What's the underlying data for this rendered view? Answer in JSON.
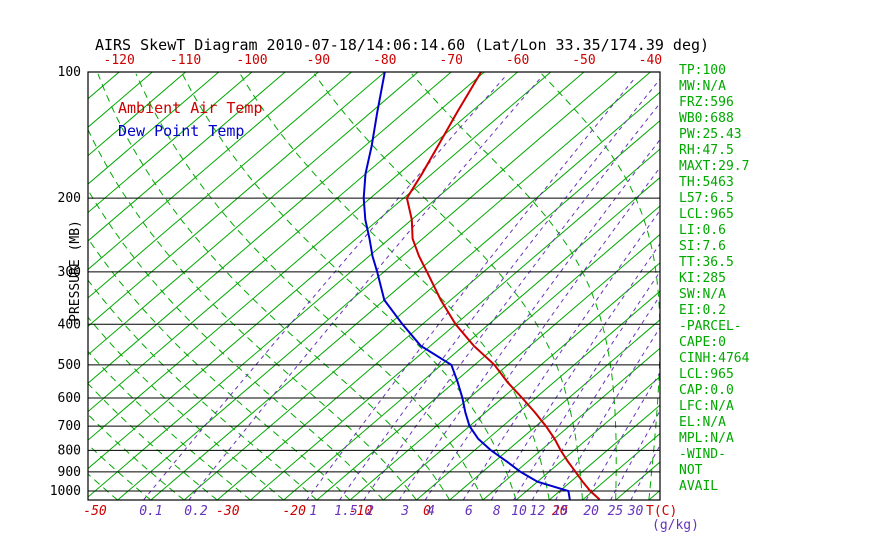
{
  "colors": {
    "isotherm": "#00A800",
    "mixing": "#6633BB",
    "tempLabel": "#CC0000",
    "statsText": "#00A800",
    "pressureLine": "#000000"
  },
  "stats": {
    "items": [
      "TP:100",
      "MW:N/A",
      "FRZ:596",
      "WB0:688",
      "PW:25.43",
      "RH:47.5",
      "MAXT:29.7",
      "TH:5463",
      "L57:6.5",
      "LCL:965",
      "LI:0.6",
      "SI:7.6",
      "TT:36.5",
      "KI:285",
      "SW:N/A",
      "EI:0.2",
      "-PARCEL-",
      "CAPE:0",
      "CINH:4764",
      "LCL:965",
      "CAP:0.0",
      "LFC:N/A",
      "EL:N/A",
      "MPL:N/A",
      "-WIND-",
      "NOT",
      "AVAIL"
    ]
  },
  "chart_data": {
    "type": "line",
    "title": "AIRS SkewT Diagram 2010-07-18/14:06:14.60 (Lat/Lon 33.35/174.39 deg)",
    "ylabel": "PRESSURE (MB)",
    "xlabel": "T(C)",
    "y_scale": "log",
    "ylim": [
      100,
      1051
    ],
    "y_ticks": [
      100,
      200,
      300,
      400,
      500,
      600,
      700,
      800,
      900,
      1000
    ],
    "top_temp_ticks": [
      -120,
      -110,
      -100,
      -90,
      -80,
      -70,
      -60,
      -50,
      -40
    ],
    "bottom_temp_ticks": [
      -50,
      -30,
      -20,
      -10,
      0,
      20
    ],
    "mixing_ratio_ticks": [
      0.1,
      0.2,
      1,
      1.5,
      2,
      3,
      4,
      6,
      8,
      10,
      12,
      15,
      20,
      25,
      30
    ],
    "mixing_ratio_unit": "(g/kg)",
    "isotherms": {
      "min": -130,
      "max": 45,
      "step": 5
    },
    "moist_adiabats": {
      "min": -50,
      "max": 40,
      "step": 5
    },
    "series": [
      {
        "name": "Ambient Air Temp",
        "color": "#CC0000",
        "points_pressure_temp": [
          [
            100,
            -65.5
          ],
          [
            125,
            -62
          ],
          [
            150,
            -59
          ],
          [
            175,
            -56.5
          ],
          [
            200,
            -54.5
          ],
          [
            225,
            -50
          ],
          [
            250,
            -46.5
          ],
          [
            275,
            -42.5
          ],
          [
            300,
            -38.5
          ],
          [
            350,
            -31.5
          ],
          [
            400,
            -25
          ],
          [
            450,
            -18.5
          ],
          [
            500,
            -12
          ],
          [
            550,
            -7
          ],
          [
            600,
            -2
          ],
          [
            650,
            2.5
          ],
          [
            700,
            6.5
          ],
          [
            750,
            10
          ],
          [
            800,
            13
          ],
          [
            850,
            16
          ],
          [
            900,
            19
          ],
          [
            950,
            21.8
          ],
          [
            1000,
            24.6
          ],
          [
            1048,
            27.5
          ]
        ]
      },
      {
        "name": "Dew Point Temp",
        "color": "#0000CC",
        "points_pressure_temp": [
          [
            100,
            -80
          ],
          [
            125,
            -74
          ],
          [
            150,
            -69
          ],
          [
            175,
            -65
          ],
          [
            200,
            -61
          ],
          [
            225,
            -57
          ],
          [
            250,
            -53
          ],
          [
            275,
            -49.5
          ],
          [
            300,
            -46
          ],
          [
            350,
            -40
          ],
          [
            400,
            -33
          ],
          [
            450,
            -26.5
          ],
          [
            500,
            -18.5
          ],
          [
            550,
            -14.5
          ],
          [
            600,
            -11
          ],
          [
            650,
            -8
          ],
          [
            700,
            -5
          ],
          [
            750,
            -1.5
          ],
          [
            800,
            2.5
          ],
          [
            850,
            6.8
          ],
          [
            900,
            10.7
          ],
          [
            950,
            15
          ],
          [
            1000,
            21.3
          ],
          [
            1048,
            23
          ]
        ]
      }
    ]
  }
}
